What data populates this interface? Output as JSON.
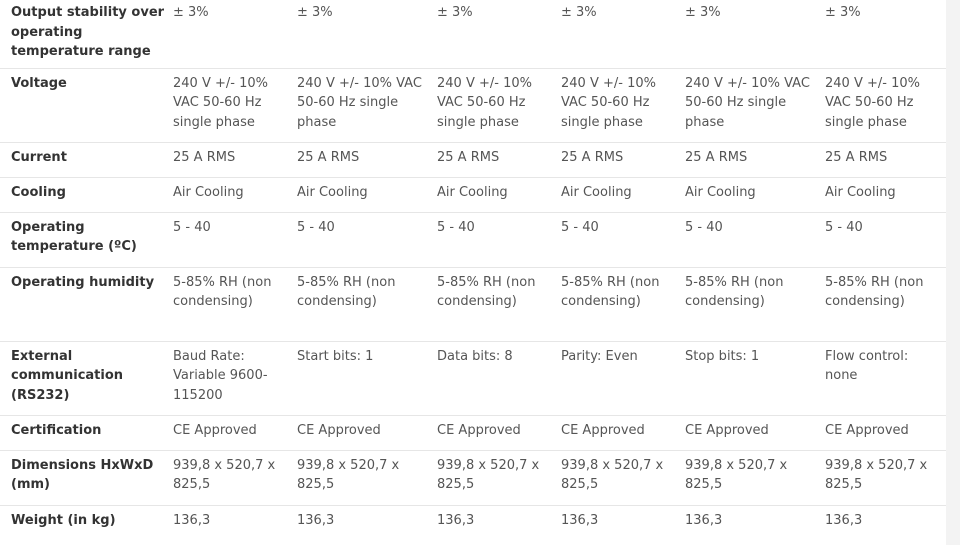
{
  "specs": {
    "rows": [
      {
        "label": "Output stability over operating temperature range",
        "values": [
          "± 3%",
          "± 3%",
          "± 3%",
          "± 3%",
          "± 3%",
          "± 3%"
        ]
      },
      {
        "label": "Voltage",
        "values": [
          "240 V +/- 10% VAC 50-60 Hz single phase",
          "240 V +/- 10% VAC 50-60 Hz single phase",
          "240 V +/- 10% VAC 50-60 Hz single phase",
          "240 V +/- 10% VAC 50-60 Hz single phase",
          "240 V +/- 10% VAC 50-60 Hz single phase",
          "240 V +/- 10% VAC 50-60 Hz single phase"
        ]
      },
      {
        "label": "Current",
        "values": [
          "25 A RMS",
          "25 A RMS",
          "25 A RMS",
          "25 A RMS",
          "25 A RMS",
          "25 A RMS"
        ]
      },
      {
        "label": "Cooling",
        "values": [
          "Air Cooling",
          "Air Cooling",
          "Air Cooling",
          "Air Cooling",
          "Air Cooling",
          "Air Cooling"
        ]
      },
      {
        "label": "Operating temperature (ºC)",
        "values": [
          "5 - 40",
          "5 - 40",
          "5 - 40",
          "5 - 40",
          "5 - 40",
          "5 - 40"
        ]
      },
      {
        "label": "Operating humidity",
        "values": [
          "5-85% RH (non condensing)",
          "5-85% RH (non condensing)",
          "5-85% RH (non condensing)",
          "5-85% RH (non condensing)",
          "5-85% RH (non condensing)",
          "5-85% RH (non condensing)"
        ]
      },
      {
        "label": "External communication (RS232)",
        "values": [
          "Baud Rate: Variable 9600-115200",
          "Start bits: 1",
          "Data bits: 8",
          "Parity: Even",
          "Stop bits: 1",
          "Flow control: none"
        ]
      },
      {
        "label": "Certification",
        "values": [
          "CE Approved",
          "CE Approved",
          "CE Approved",
          "CE Approved",
          "CE Approved",
          "CE Approved"
        ]
      },
      {
        "label": "Dimensions HxWxD (mm)",
        "values": [
          "939,8 x 520,7 x 825,5",
          "939,8 x 520,7 x 825,5",
          "939,8 x 520,7 x 825,5",
          "939,8 x 520,7 x 825,5",
          "939,8 x 520,7 x 825,5",
          "939,8 x 520,7 x 825,5"
        ]
      },
      {
        "label": "Weight (in kg)",
        "values": [
          "136,3",
          "136,3",
          "136,3",
          "136,3",
          "136,3",
          "136,3"
        ]
      }
    ]
  }
}
